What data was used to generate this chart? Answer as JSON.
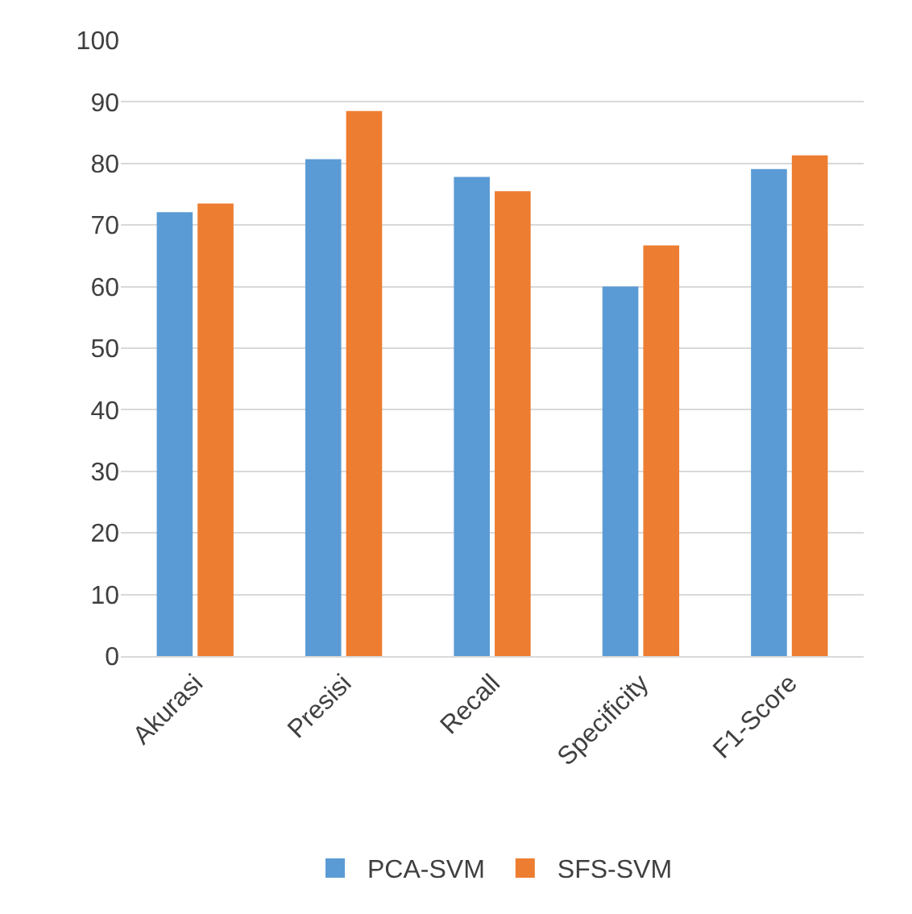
{
  "chart_data": {
    "type": "bar",
    "categories": [
      "Akurasi",
      "Presisi",
      "Recall",
      "Specificity",
      "F1-Score"
    ],
    "series": [
      {
        "name": "PCA-SVM",
        "color": "#5b9bd5",
        "values": [
          72.1,
          80.7,
          77.8,
          60.0,
          79.1
        ]
      },
      {
        "name": "SFS-SVM",
        "color": "#ed7d31",
        "values": [
          73.5,
          88.5,
          75.5,
          66.7,
          81.3
        ]
      }
    ],
    "ylim": [
      0,
      100
    ],
    "yticks": [
      0,
      10,
      20,
      30,
      40,
      50,
      60,
      70,
      80,
      90,
      100
    ],
    "grid": "y",
    "legend": "bottom"
  }
}
